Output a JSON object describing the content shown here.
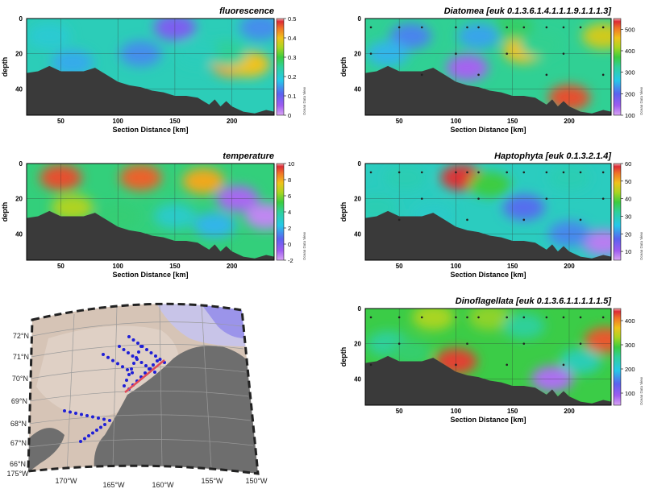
{
  "chart_data": [
    {
      "type": "heatmap",
      "title": "fluorescence",
      "xlabel": "Section Distance [km]",
      "ylabel": "depth",
      "xlim": [
        20,
        237
      ],
      "ylim": [
        0,
        55
      ],
      "xticks": [
        "50",
        "100",
        "150",
        "200"
      ],
      "yticks": [
        "0",
        "20",
        "40"
      ],
      "colorbar": {
        "min": 0,
        "max": 0.5,
        "ticks": [
          "0",
          "0.1",
          "0.2",
          "0.3",
          "0.4",
          "0.5"
        ],
        "label": "Ocean Data View"
      },
      "bottom_depth_km": [
        [
          20,
          31
        ],
        [
          30,
          30
        ],
        [
          40,
          27
        ],
        [
          50,
          30
        ],
        [
          60,
          30
        ],
        [
          70,
          30
        ],
        [
          80,
          28
        ],
        [
          90,
          32
        ],
        [
          100,
          36
        ],
        [
          110,
          38
        ],
        [
          120,
          39
        ],
        [
          130,
          41
        ],
        [
          140,
          42
        ],
        [
          150,
          44
        ],
        [
          160,
          44
        ],
        [
          170,
          45
        ],
        [
          180,
          49
        ],
        [
          185,
          46
        ],
        [
          190,
          50
        ],
        [
          195,
          47
        ],
        [
          200,
          50
        ],
        [
          210,
          53
        ],
        [
          220,
          54
        ],
        [
          230,
          52
        ],
        [
          237,
          53
        ]
      ],
      "fields": [
        {
          "x": 200,
          "y": 26,
          "value": 0.42
        },
        {
          "x": 215,
          "y": 26,
          "value": 0.4
        },
        {
          "x": 195,
          "y": 20,
          "value": 0.25
        },
        {
          "x": 170,
          "y": 20,
          "value": 0.22
        },
        {
          "x": 120,
          "y": 20,
          "value": 0.14
        },
        {
          "x": 40,
          "y": 10,
          "value": 0.2
        },
        {
          "x": 60,
          "y": 25,
          "value": 0.16
        },
        {
          "x": 150,
          "y": 5,
          "value": 0.08
        },
        {
          "x": 225,
          "y": 5,
          "value": 0.14
        }
      ]
    },
    {
      "type": "heatmap",
      "title": "temperature",
      "xlabel": "Section Distance [km]",
      "ylabel": "depth",
      "xlim": [
        20,
        237
      ],
      "ylim": [
        0,
        55
      ],
      "xticks": [
        "50",
        "100",
        "150",
        "200"
      ],
      "yticks": [
        "0",
        "20",
        "40"
      ],
      "colorbar": {
        "min": -2,
        "max": 10,
        "ticks": [
          "-2",
          "0",
          "2",
          "4",
          "6",
          "8",
          "10"
        ],
        "label": "Ocean Data View"
      },
      "bottom_depth_km": [
        [
          20,
          31
        ],
        [
          30,
          30
        ],
        [
          40,
          27
        ],
        [
          50,
          30
        ],
        [
          60,
          30
        ],
        [
          70,
          30
        ],
        [
          80,
          28
        ],
        [
          90,
          32
        ],
        [
          100,
          36
        ],
        [
          110,
          38
        ],
        [
          120,
          39
        ],
        [
          130,
          41
        ],
        [
          140,
          42
        ],
        [
          150,
          44
        ],
        [
          160,
          44
        ],
        [
          170,
          45
        ],
        [
          180,
          49
        ],
        [
          185,
          46
        ],
        [
          190,
          50
        ],
        [
          195,
          47
        ],
        [
          200,
          50
        ],
        [
          210,
          53
        ],
        [
          220,
          54
        ],
        [
          230,
          52
        ],
        [
          237,
          53
        ]
      ],
      "fields": [
        {
          "x": 50,
          "y": 8,
          "value": 9.2
        },
        {
          "x": 120,
          "y": 8,
          "value": 9
        },
        {
          "x": 175,
          "y": 10,
          "value": 8
        },
        {
          "x": 60,
          "y": 25,
          "value": 6.5
        },
        {
          "x": 100,
          "y": 30,
          "value": 4.5
        },
        {
          "x": 150,
          "y": 30,
          "value": 3
        },
        {
          "x": 185,
          "y": 35,
          "value": 2
        },
        {
          "x": 205,
          "y": 20,
          "value": -1
        },
        {
          "x": 230,
          "y": 30,
          "value": -1.5
        }
      ]
    },
    {
      "type": "heatmap",
      "title": "Diatomea [euk 0.1.3.6.1.4.1.1.1.9.1.1.1.3]",
      "xlabel": "Section Distance [km]",
      "ylabel": "depth",
      "xlim": [
        20,
        237
      ],
      "ylim": [
        0,
        55
      ],
      "xticks": [
        "50",
        "100",
        "150",
        "200"
      ],
      "yticks": [
        "0",
        "20",
        "40"
      ],
      "colorbar": {
        "min": 100,
        "max": 550,
        "ticks": [
          "100",
          "200",
          "300",
          "400",
          "500"
        ],
        "label": "Ocean Data View"
      },
      "bottom_depth_km": [
        [
          20,
          31
        ],
        [
          30,
          30
        ],
        [
          40,
          27
        ],
        [
          50,
          30
        ],
        [
          60,
          30
        ],
        [
          70,
          30
        ],
        [
          80,
          28
        ],
        [
          90,
          32
        ],
        [
          100,
          36
        ],
        [
          110,
          38
        ],
        [
          120,
          39
        ],
        [
          130,
          41
        ],
        [
          140,
          42
        ],
        [
          150,
          44
        ],
        [
          160,
          44
        ],
        [
          170,
          45
        ],
        [
          180,
          49
        ],
        [
          185,
          46
        ],
        [
          190,
          50
        ],
        [
          195,
          47
        ],
        [
          200,
          50
        ],
        [
          210,
          53
        ],
        [
          220,
          54
        ],
        [
          230,
          52
        ],
        [
          237,
          53
        ]
      ],
      "fields": [
        {
          "x": 200,
          "y": 45,
          "value": 520
        },
        {
          "x": 160,
          "y": 18,
          "value": 460
        },
        {
          "x": 230,
          "y": 10,
          "value": 440
        },
        {
          "x": 150,
          "y": 5,
          "value": 350
        },
        {
          "x": 175,
          "y": 15,
          "value": 330
        },
        {
          "x": 120,
          "y": 10,
          "value": 240
        },
        {
          "x": 60,
          "y": 10,
          "value": 220
        },
        {
          "x": 40,
          "y": 20,
          "value": 250
        },
        {
          "x": 110,
          "y": 28,
          "value": 140
        }
      ]
    },
    {
      "type": "heatmap",
      "title": "Haptophyta [euk 0.1.3.2.1.4]",
      "xlabel": "Section Distance [km]",
      "ylabel": "depth",
      "xlim": [
        20,
        237
      ],
      "ylim": [
        0,
        55
      ],
      "xticks": [
        "50",
        "100",
        "150",
        "200"
      ],
      "yticks": [
        "0",
        "20",
        "40"
      ],
      "colorbar": {
        "min": 5,
        "max": 60,
        "ticks": [
          "10",
          "20",
          "30",
          "40",
          "50",
          "60"
        ],
        "label": "Ocean Data View"
      },
      "bottom_depth_km": [
        [
          20,
          31
        ],
        [
          30,
          30
        ],
        [
          40,
          27
        ],
        [
          50,
          30
        ],
        [
          60,
          30
        ],
        [
          70,
          30
        ],
        [
          80,
          28
        ],
        [
          90,
          32
        ],
        [
          100,
          36
        ],
        [
          110,
          38
        ],
        [
          120,
          39
        ],
        [
          130,
          41
        ],
        [
          140,
          42
        ],
        [
          150,
          44
        ],
        [
          160,
          44
        ],
        [
          170,
          45
        ],
        [
          180,
          49
        ],
        [
          185,
          46
        ],
        [
          190,
          50
        ],
        [
          195,
          47
        ],
        [
          200,
          50
        ],
        [
          210,
          53
        ],
        [
          220,
          54
        ],
        [
          230,
          52
        ],
        [
          237,
          53
        ]
      ],
      "fields": [
        {
          "x": 105,
          "y": 8,
          "value": 58
        },
        {
          "x": 130,
          "y": 12,
          "value": 38
        },
        {
          "x": 55,
          "y": 8,
          "value": 30
        },
        {
          "x": 30,
          "y": 25,
          "value": 30
        },
        {
          "x": 160,
          "y": 25,
          "value": 18
        },
        {
          "x": 200,
          "y": 8,
          "value": 30
        },
        {
          "x": 230,
          "y": 45,
          "value": 8
        },
        {
          "x": 200,
          "y": 40,
          "value": 20
        },
        {
          "x": 80,
          "y": 30,
          "value": 28
        }
      ]
    },
    {
      "type": "heatmap",
      "title": "Dinoflagellata [euk 0.1.3.6.1.1.1.1.1.5]",
      "xlabel": "Section Distance [km]",
      "ylabel": "depth",
      "xlim": [
        20,
        237
      ],
      "ylim": [
        0,
        55
      ],
      "xticks": [
        "50",
        "100",
        "150",
        "200"
      ],
      "yticks": [
        "0",
        "20",
        "40"
      ],
      "colorbar": {
        "min": 50,
        "max": 450,
        "ticks": [
          "100",
          "200",
          "300",
          "400"
        ],
        "label": "Ocean Data View"
      },
      "bottom_depth_km": [
        [
          20,
          31
        ],
        [
          30,
          30
        ],
        [
          40,
          27
        ],
        [
          50,
          30
        ],
        [
          60,
          30
        ],
        [
          70,
          30
        ],
        [
          80,
          28
        ],
        [
          90,
          32
        ],
        [
          100,
          36
        ],
        [
          110,
          38
        ],
        [
          120,
          39
        ],
        [
          130,
          41
        ],
        [
          140,
          42
        ],
        [
          150,
          44
        ],
        [
          160,
          44
        ],
        [
          170,
          45
        ],
        [
          180,
          49
        ],
        [
          185,
          46
        ],
        [
          190,
          50
        ],
        [
          195,
          47
        ],
        [
          200,
          50
        ],
        [
          210,
          53
        ],
        [
          220,
          54
        ],
        [
          230,
          52
        ],
        [
          237,
          53
        ]
      ],
      "fields": [
        {
          "x": 100,
          "y": 30,
          "value": 430
        },
        {
          "x": 232,
          "y": 18,
          "value": 420
        },
        {
          "x": 80,
          "y": 5,
          "value": 330
        },
        {
          "x": 130,
          "y": 5,
          "value": 320
        },
        {
          "x": 185,
          "y": 40,
          "value": 80
        },
        {
          "x": 160,
          "y": 10,
          "value": 250
        },
        {
          "x": 40,
          "y": 20,
          "value": 250
        },
        {
          "x": 210,
          "y": 30,
          "value": 230
        },
        {
          "x": 60,
          "y": 25,
          "value": 270
        }
      ]
    }
  ],
  "map": {
    "lat_labels": [
      "72°N",
      "71°N",
      "70°N",
      "69°N",
      "68°N",
      "67°N",
      "66°N"
    ],
    "lon_labels": [
      "175°W",
      "170°W",
      "165°W",
      "160°W",
      "155°W",
      "150°W"
    ]
  }
}
